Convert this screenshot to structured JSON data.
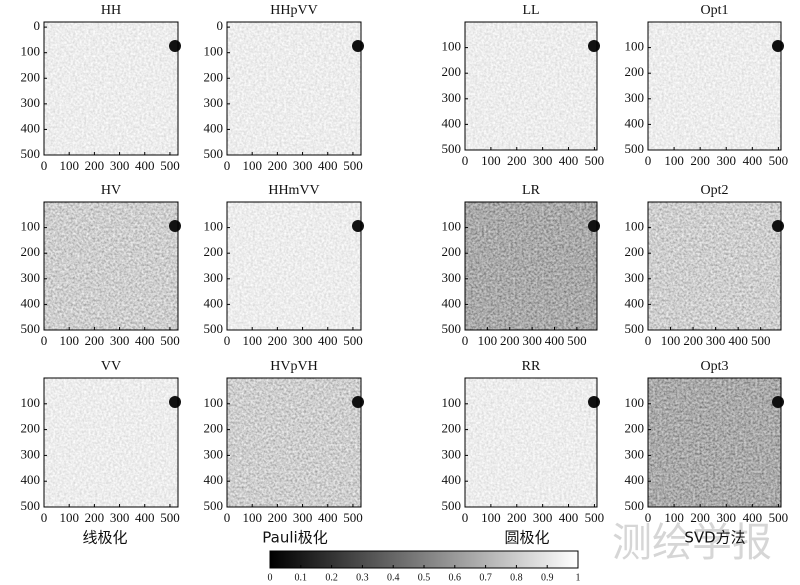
{
  "chart_data": {
    "type": "image-grid",
    "panels": [
      {
        "title": "HH",
        "xlim": [
          0,
          532
        ],
        "ylim": [
          -20,
          500
        ],
        "xticks": [
          0,
          100,
          200,
          300,
          400,
          500
        ],
        "yticks": [
          0,
          100,
          200,
          300,
          400,
          500
        ]
      },
      {
        "title": "HHpVV",
        "xlim": [
          0,
          532
        ],
        "ylim": [
          -20,
          500
        ],
        "xticks": [
          0,
          100,
          200,
          300,
          400,
          500
        ],
        "yticks": [
          0,
          100,
          200,
          300,
          400,
          500
        ]
      },
      {
        "title": "LL",
        "xlim": [
          0,
          510
        ],
        "ylim": [
          0,
          500
        ],
        "xticks": [
          0,
          100,
          200,
          300,
          400,
          500
        ],
        "yticks": [
          100,
          200,
          300,
          400,
          500
        ]
      },
      {
        "title": "Opt1",
        "xlim": [
          0,
          510
        ],
        "ylim": [
          0,
          500
        ],
        "xticks": [
          0,
          100,
          200,
          300,
          400,
          500
        ],
        "yticks": [
          100,
          200,
          300,
          400,
          500
        ]
      },
      {
        "title": "HV",
        "xlim": [
          0,
          532
        ],
        "ylim": [
          0,
          500
        ],
        "xticks": [
          0,
          100,
          200,
          300,
          400,
          500
        ],
        "yticks": [
          100,
          200,
          300,
          400,
          500
        ]
      },
      {
        "title": "HHmVV",
        "xlim": [
          0,
          532
        ],
        "ylim": [
          0,
          500
        ],
        "xticks": [
          0,
          100,
          200,
          300,
          400,
          500
        ],
        "yticks": [
          100,
          200,
          300,
          400,
          500
        ]
      },
      {
        "title": "LR",
        "xlim": [
          0,
          590
        ],
        "ylim": [
          0,
          500
        ],
        "xticks": [
          0,
          100,
          200,
          300,
          400,
          500
        ],
        "yticks": [
          100,
          200,
          300,
          400,
          500
        ]
      },
      {
        "title": "Opt2",
        "xlim": [
          0,
          590
        ],
        "ylim": [
          0,
          500
        ],
        "xticks": [
          0,
          100,
          200,
          300,
          400,
          500
        ],
        "yticks": [
          100,
          200,
          300,
          400,
          500
        ]
      },
      {
        "title": "VV",
        "xlim": [
          0,
          532
        ],
        "ylim": [
          0,
          500
        ],
        "xticks": [
          0,
          100,
          200,
          300,
          400,
          500
        ],
        "yticks": [
          100,
          200,
          300,
          400,
          500
        ]
      },
      {
        "title": "HVpVH",
        "xlim": [
          0,
          532
        ],
        "ylim": [
          0,
          500
        ],
        "xticks": [
          0,
          100,
          200,
          300,
          400,
          500
        ],
        "yticks": [
          100,
          200,
          300,
          400,
          500
        ]
      },
      {
        "title": "RR",
        "xlim": [
          0,
          510
        ],
        "ylim": [
          0,
          500
        ],
        "xticks": [
          0,
          100,
          200,
          300,
          400,
          500
        ],
        "yticks": [
          100,
          200,
          300,
          400,
          500
        ]
      },
      {
        "title": "Opt3",
        "xlim": [
          0,
          510
        ],
        "ylim": [
          0,
          500
        ],
        "xticks": [
          0,
          100,
          200,
          300,
          400,
          500
        ],
        "yticks": [
          100,
          200,
          300,
          400,
          500
        ]
      }
    ],
    "group_labels": [
      "线极化",
      "Pauli极化",
      "圆极化",
      "SVD方法"
    ],
    "colorbar": {
      "clim": [
        0,
        1
      ],
      "ticks": [
        0,
        0.1,
        0.2,
        0.3,
        0.4,
        0.5,
        0.6,
        0.7,
        0.8,
        0.9,
        1
      ]
    },
    "watermark": "测绘学报"
  }
}
